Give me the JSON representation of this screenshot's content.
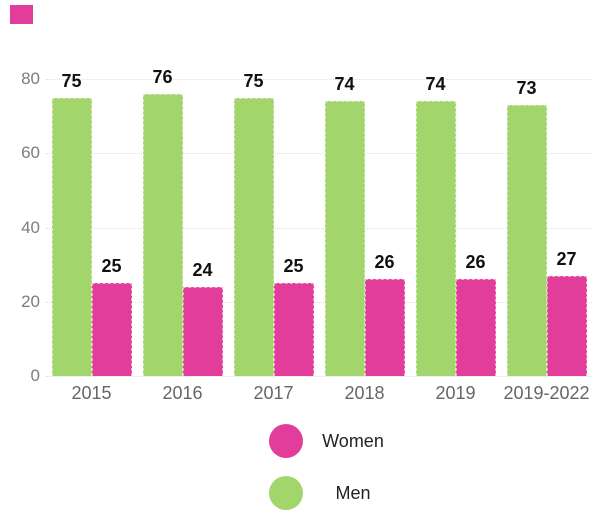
{
  "chart_data": {
    "type": "bar",
    "title": "",
    "categories": [
      "2015",
      "2016",
      "2017",
      "2018",
      "2019",
      "2019-2022"
    ],
    "series": [
      {
        "name": "Men",
        "color": "#A2D66C",
        "values": [
          75,
          76,
          75,
          74,
          74,
          73
        ]
      },
      {
        "name": "Women",
        "color": "#E33D9B",
        "values": [
          25,
          24,
          25,
          26,
          26,
          27
        ]
      }
    ],
    "ylim": [
      0,
      80
    ],
    "yticks": [
      "80",
      "60",
      "40",
      "20",
      "0"
    ],
    "grid": true,
    "legend_position": "bottom-center"
  },
  "legend": {
    "items": [
      {
        "label": "Women",
        "color": "#E33D9B"
      },
      {
        "label": "Men",
        "color": "#A2D66C"
      }
    ]
  },
  "decoration": {
    "corner_swatch_color": "#E33D9B"
  }
}
